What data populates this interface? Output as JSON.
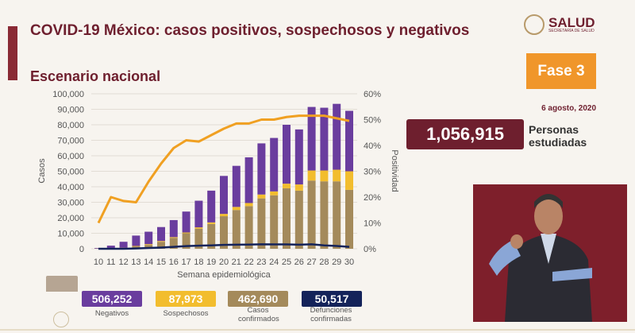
{
  "header": {
    "title": "COVID-19 México: casos positivos, sospechosos y negativos",
    "subtitle": "Escenario nacional"
  },
  "logo": {
    "text": "SALUD",
    "subtext": "SECRETARÍA DE SALUD"
  },
  "phase": {
    "label": "Fase 3",
    "date": "6 agosto, 2020"
  },
  "tested": {
    "value": "1,056,915",
    "label_line1": "Personas",
    "label_line2": "estudiadas"
  },
  "stats": [
    {
      "value": "506,252",
      "label": "Negativos",
      "color": "#6a3d9e"
    },
    {
      "value": "87,973",
      "label": "Sospechosos",
      "color": "#f2bd2e"
    },
    {
      "value": "462,690",
      "label": "Casos confirmados",
      "color": "#a48a5b"
    },
    {
      "value": "50,517",
      "label": "Defunciones confirmadas",
      "color": "#14235a"
    }
  ],
  "chart_data": {
    "type": "bar",
    "xlabel": "Semana epidemiológica",
    "ylabel": "Casos",
    "y2label": "Positividad",
    "ylim": [
      0,
      100000
    ],
    "y2lim": [
      0,
      60
    ],
    "yticks": [
      "0",
      "10,000",
      "20,000",
      "30,000",
      "40,000",
      "50,000",
      "60,000",
      "70,000",
      "80,000",
      "90,000",
      "100,000"
    ],
    "y2ticks": [
      "0%",
      "10%",
      "20%",
      "30%",
      "40%",
      "50%",
      "60%"
    ],
    "categories": [
      "10",
      "11",
      "12",
      "13",
      "14",
      "15",
      "16",
      "17",
      "18",
      "19",
      "20",
      "21",
      "22",
      "23",
      "24",
      "25",
      "26",
      "27",
      "28",
      "29",
      "30"
    ],
    "series": [
      {
        "name": "Confirmados",
        "type": "bar",
        "color": "#a48a5b",
        "values": [
          100,
          200,
          500,
          1500,
          2500,
          4500,
          7000,
          10000,
          13000,
          16000,
          21000,
          25000,
          27500,
          32500,
          34500,
          39000,
          37500,
          44000,
          43500,
          43500,
          38000
        ]
      },
      {
        "name": "Sospechosos",
        "type": "bar",
        "color": "#f2bd2e",
        "values": [
          50,
          100,
          200,
          300,
          500,
          500,
          500,
          500,
          800,
          1000,
          1500,
          2000,
          2000,
          2500,
          2500,
          3000,
          4000,
          6500,
          7000,
          7500,
          12000
        ]
      },
      {
        "name": "Negativos",
        "type": "bar",
        "color": "#6a3d9e",
        "values": [
          350,
          1700,
          3800,
          6700,
          8000,
          9000,
          11000,
          13500,
          17200,
          20500,
          24500,
          26500,
          29500,
          33000,
          34500,
          38000,
          35500,
          41000,
          40500,
          42500,
          39000
        ]
      },
      {
        "name": "Positividad",
        "type": "line",
        "axis": "right",
        "color": "#f0a022",
        "values": [
          10,
          20,
          18.5,
          18,
          26,
          33,
          39,
          42,
          41.5,
          44,
          46.5,
          48.5,
          48.5,
          50,
          50,
          51,
          51.5,
          51.5,
          51.5,
          50.5,
          49.5
        ]
      },
      {
        "name": "Defunciones",
        "type": "line",
        "color": "#14235a",
        "values": [
          0,
          0,
          0,
          200,
          500,
          800,
          1200,
          1700,
          2000,
          2200,
          2500,
          2600,
          2700,
          2900,
          2800,
          2800,
          2600,
          2900,
          2200,
          1800,
          1200
        ]
      }
    ]
  }
}
